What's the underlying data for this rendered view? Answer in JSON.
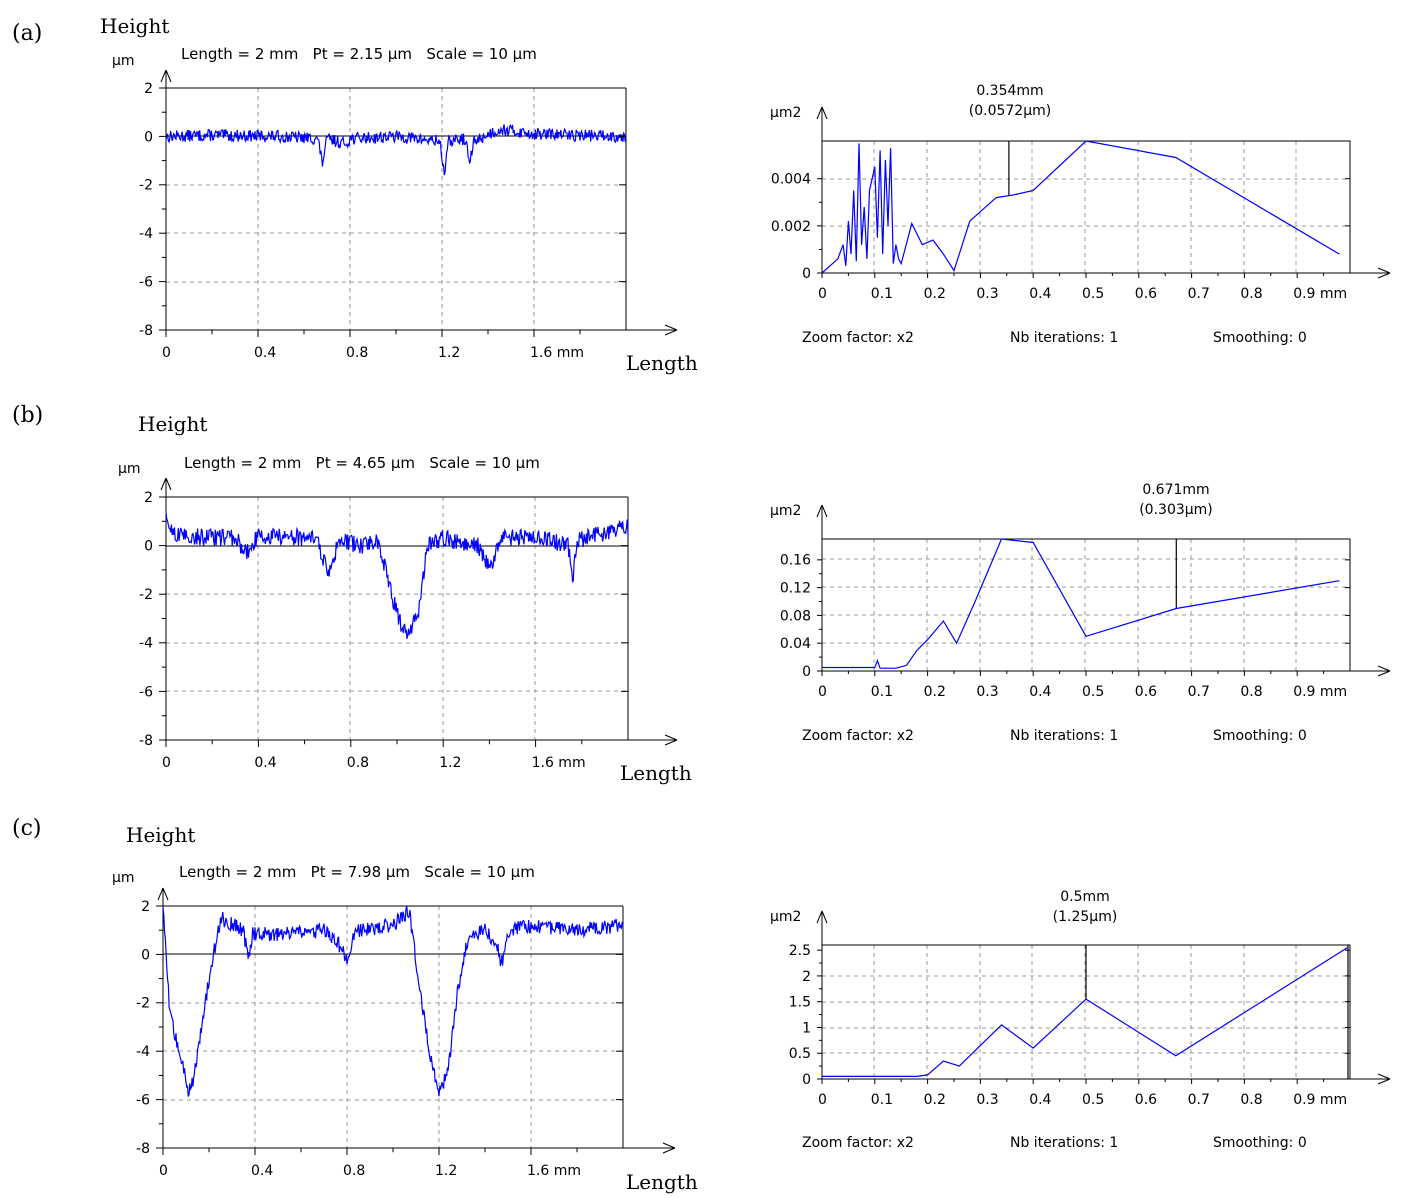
{
  "panels": [
    {
      "label": "(a)",
      "profile": {
        "y_axis_title": "Height",
        "y_unit": "µm",
        "x_axis_title": "Length",
        "x_unit": "mm",
        "header": "Length = 2 mm   Pt = 2.15 µm   Scale = 10 µm"
      },
      "spectrum": {
        "y_unit": "µm2",
        "x_unit": "mm",
        "marker_line1": "0.354mm",
        "marker_line2": "(0.0572µm)",
        "zoom": "Zoom factor: x2",
        "iterations": "Nb iterations: 1",
        "smoothing": "Smoothing: 0"
      }
    },
    {
      "label": "(b)",
      "profile": {
        "y_axis_title": "Height",
        "y_unit": "µm",
        "x_axis_title": "Length",
        "x_unit": "mm",
        "header": "Length = 2 mm   Pt = 4.65 µm   Scale = 10 µm"
      },
      "spectrum": {
        "y_unit": "µm2",
        "x_unit": "mm",
        "marker_line1": "0.671mm",
        "marker_line2": "(0.303µm)",
        "zoom": "Zoom factor: x2",
        "iterations": "Nb iterations: 1",
        "smoothing": "Smoothing: 0"
      }
    },
    {
      "label": "(c)",
      "profile": {
        "y_axis_title": "Height",
        "y_unit": "µm",
        "x_axis_title": "Length",
        "x_unit": "mm",
        "header": "Length = 2 mm   Pt = 7.98 µm   Scale = 10 µm"
      },
      "spectrum": {
        "y_unit": "µm2",
        "x_unit": "mm",
        "marker_line1": "0.5mm",
        "marker_line2": "(1.25µm)",
        "zoom": "Zoom factor: x2",
        "iterations": "Nb iterations: 1",
        "smoothing": "Smoothing: 0"
      }
    }
  ],
  "chart_data": [
    {
      "id": "a-profile",
      "type": "line",
      "title": "Length = 2 mm   Pt = 2.15 µm   Scale = 10 µm",
      "xlabel": "Length",
      "ylabel": "Height (µm)",
      "xlim": [
        0,
        2.0
      ],
      "ylim": [
        -8,
        2
      ],
      "xticks": [
        0,
        0.4,
        0.8,
        1.2,
        1.6
      ],
      "xtick_labels": [
        "0",
        "0.4",
        "0.8",
        "1.2",
        "1.6 mm"
      ],
      "yticks": [
        2,
        0,
        -2,
        -4,
        -6,
        -8
      ],
      "ytick_labels": [
        "2",
        "0",
        "-2",
        "-4",
        "-6",
        "-8"
      ],
      "grid": true,
      "color": "#0000ff",
      "base": 0.05,
      "noise": 0.25,
      "x": [
        0,
        0.2,
        0.5,
        0.66,
        0.68,
        0.7,
        0.78,
        0.8,
        1.0,
        1.19,
        1.21,
        1.23,
        1.3,
        1.32,
        1.34,
        1.45,
        1.6,
        2.0
      ],
      "values": [
        0.0,
        0.05,
        0.0,
        -0.1,
        -1.1,
        -0.1,
        -0.3,
        -0.1,
        0.0,
        -0.2,
        -1.5,
        -0.2,
        -0.1,
        -1.1,
        -0.2,
        0.3,
        0.1,
        0.0
      ]
    },
    {
      "id": "a-spectrum",
      "type": "line",
      "xlabel": "",
      "ylabel": "µm2",
      "xlim": [
        0,
        1.0
      ],
      "ylim": [
        0,
        0.0056
      ],
      "xticks": [
        0,
        0.1,
        0.2,
        0.3,
        0.4,
        0.5,
        0.6,
        0.7,
        0.8,
        0.9
      ],
      "xtick_labels": [
        "0",
        "0.1",
        "0.2",
        "0.3",
        "0.4",
        "0.5",
        "0.6",
        "0.7",
        "0.8",
        "0.9 mm"
      ],
      "yticks": [
        0,
        0.002,
        0.004
      ],
      "ytick_labels": [
        "0",
        "0.002",
        "0.004"
      ],
      "grid": true,
      "color": "#0000ff",
      "marker_x": 0.354,
      "x": [
        0,
        0.015,
        0.03,
        0.04,
        0.045,
        0.05,
        0.055,
        0.06,
        0.065,
        0.07,
        0.075,
        0.08,
        0.085,
        0.09,
        0.1,
        0.105,
        0.11,
        0.115,
        0.12,
        0.125,
        0.13,
        0.135,
        0.14,
        0.145,
        0.15,
        0.17,
        0.19,
        0.21,
        0.23,
        0.25,
        0.28,
        0.33,
        0.36,
        0.4,
        0.5,
        0.67,
        0.98
      ],
      "values": [
        0,
        0.0003,
        0.0006,
        0.0012,
        0.0003,
        0.0022,
        0.0008,
        0.0035,
        0.0005,
        0.0055,
        0.0012,
        0.0028,
        0.0006,
        0.0035,
        0.0045,
        0.0015,
        0.0052,
        0.0008,
        0.0048,
        0.002,
        0.0053,
        0.0004,
        0.0012,
        0.0006,
        0.0004,
        0.0021,
        0.0012,
        0.0014,
        0.0008,
        0.0001,
        0.0022,
        0.0032,
        0.0033,
        0.0035,
        0.0056,
        0.0049,
        0.0008
      ]
    },
    {
      "id": "b-profile",
      "type": "line",
      "title": "Length = 2 mm   Pt = 4.65 µm   Scale = 10 µm",
      "xlabel": "Length",
      "ylabel": "Height (µm)",
      "xlim": [
        0,
        2.0
      ],
      "ylim": [
        -8,
        2
      ],
      "xticks": [
        0,
        0.4,
        0.8,
        1.2,
        1.6
      ],
      "xtick_labels": [
        "0",
        "0.4",
        "0.8",
        "1.2",
        "1.6 mm"
      ],
      "yticks": [
        2,
        0,
        -2,
        -4,
        -6,
        -8
      ],
      "ytick_labels": [
        "2",
        "0",
        "-2",
        "-4",
        "-6",
        "-8"
      ],
      "grid": true,
      "color": "#0000ff",
      "base": 0.4,
      "noise": 0.35,
      "x": [
        0,
        0.05,
        0.3,
        0.35,
        0.4,
        0.65,
        0.7,
        0.75,
        0.85,
        0.92,
        0.95,
        1.0,
        1.03,
        1.06,
        1.1,
        1.13,
        1.2,
        1.35,
        1.4,
        1.45,
        1.6,
        1.74,
        1.76,
        1.78,
        2.0
      ],
      "values": [
        1.0,
        0.4,
        0.3,
        -0.3,
        0.4,
        0.3,
        -1.1,
        0.2,
        0.0,
        0.2,
        -1.0,
        -2.8,
        -3.6,
        -3.5,
        -2.4,
        0.0,
        0.3,
        0.0,
        -1.0,
        0.3,
        0.4,
        0.0,
        -1.4,
        0.2,
        0.8
      ]
    },
    {
      "id": "b-spectrum",
      "type": "line",
      "xlabel": "",
      "ylabel": "µm2",
      "xlim": [
        0,
        1.0
      ],
      "ylim": [
        0,
        0.19
      ],
      "xticks": [
        0,
        0.1,
        0.2,
        0.3,
        0.4,
        0.5,
        0.6,
        0.7,
        0.8,
        0.9
      ],
      "xtick_labels": [
        "0",
        "0.1",
        "0.2",
        "0.3",
        "0.4",
        "0.5",
        "0.6",
        "0.7",
        "0.8",
        "0.9 mm"
      ],
      "yticks": [
        0,
        0.04,
        0.08,
        0.12,
        0.16
      ],
      "ytick_labels": [
        "0",
        "0.04",
        "0.08",
        "0.12",
        "0.16"
      ],
      "grid": true,
      "color": "#0000ff",
      "marker_x": 0.671,
      "x": [
        0,
        0.1,
        0.105,
        0.11,
        0.14,
        0.16,
        0.18,
        0.2,
        0.23,
        0.255,
        0.29,
        0.34,
        0.4,
        0.5,
        0.671,
        0.98
      ],
      "values": [
        0.005,
        0.005,
        0.015,
        0.004,
        0.004,
        0.008,
        0.03,
        0.045,
        0.072,
        0.04,
        0.1,
        0.19,
        0.185,
        0.05,
        0.09,
        0.13
      ]
    },
    {
      "id": "c-profile",
      "type": "line",
      "title": "Length = 2 mm   Pt = 7.98 µm   Scale = 10 µm",
      "xlabel": "Length",
      "ylabel": "Height (µm)",
      "xlim": [
        0,
        2.0
      ],
      "ylim": [
        -8,
        2
      ],
      "xticks": [
        0,
        0.4,
        0.8,
        1.2,
        1.6
      ],
      "xtick_labels": [
        "0",
        "0.4",
        "0.8",
        "1.2",
        "1.6 mm"
      ],
      "yticks": [
        2,
        0,
        -2,
        -4,
        -6,
        -8
      ],
      "ytick_labels": [
        "2",
        "0",
        "-2",
        "-4",
        "-6",
        "-8"
      ],
      "grid": true,
      "color": "#0000ff",
      "base": 0.9,
      "noise": 0.3,
      "x": [
        0,
        0.01,
        0.03,
        0.07,
        0.11,
        0.13,
        0.16,
        0.2,
        0.25,
        0.35,
        0.37,
        0.39,
        0.5,
        0.7,
        0.76,
        0.8,
        0.84,
        1.0,
        1.07,
        1.1,
        1.12,
        1.16,
        1.2,
        1.24,
        1.28,
        1.33,
        1.4,
        1.45,
        1.47,
        1.5,
        1.6,
        1.8,
        2.0
      ],
      "values": [
        1.8,
        0.5,
        -2.5,
        -4.0,
        -5.6,
        -5.2,
        -3.5,
        -1.0,
        1.5,
        1.0,
        -0.2,
        0.9,
        0.8,
        1.0,
        0.5,
        -0.2,
        1.0,
        1.2,
        1.8,
        -0.3,
        -1.8,
        -4.0,
        -5.8,
        -4.8,
        -1.5,
        0.8,
        1.0,
        0.5,
        -0.5,
        1.0,
        1.2,
        1.0,
        1.2
      ]
    },
    {
      "id": "c-spectrum",
      "type": "line",
      "xlabel": "",
      "ylabel": "µm2",
      "xlim": [
        0,
        1.0
      ],
      "ylim": [
        0,
        2.6
      ],
      "xticks": [
        0,
        0.1,
        0.2,
        0.3,
        0.4,
        0.5,
        0.6,
        0.7,
        0.8,
        0.9
      ],
      "xtick_labels": [
        "0",
        "0.1",
        "0.2",
        "0.3",
        "0.4",
        "0.5",
        "0.6",
        "0.7",
        "0.8",
        "0.9 mm"
      ],
      "yticks": [
        0,
        0.5,
        1,
        1.5,
        2,
        2.5
      ],
      "ytick_labels": [
        "0",
        "0.5",
        "1",
        "1.5",
        "2",
        "2.5"
      ],
      "grid": true,
      "color": "#0000ff",
      "marker_x": 0.5,
      "x": [
        0,
        0.18,
        0.2,
        0.23,
        0.26,
        0.34,
        0.4,
        0.5,
        0.67,
        0.995
      ],
      "values": [
        0.05,
        0.05,
        0.08,
        0.35,
        0.25,
        1.05,
        0.6,
        1.55,
        0.45,
        2.55
      ]
    }
  ]
}
